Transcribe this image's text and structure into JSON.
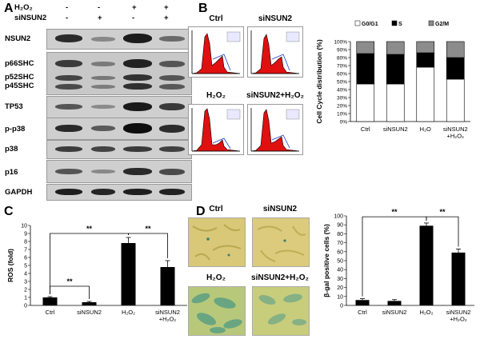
{
  "panels": {
    "a": "A",
    "b": "B",
    "c": "C",
    "d": "D"
  },
  "blot": {
    "treatments": [
      {
        "label": "H₂O₂",
        "values": [
          "-",
          "-",
          "+",
          "+"
        ]
      },
      {
        "label": "siNSUN2",
        "values": [
          "-",
          "+",
          "-",
          "+"
        ]
      }
    ],
    "rows": [
      "NSUN2",
      "p66SHC",
      "p52SHC",
      "p45SHC",
      "TP53",
      "p-p38",
      "p38",
      "p16",
      "GAPDH"
    ]
  },
  "flow": {
    "titles": [
      "Ctrl",
      "siNSUN2",
      "H₂O₂",
      "siNSUN2+H₂O₂"
    ]
  },
  "micro": {
    "titles": [
      "Ctrl",
      "siNSUN2",
      "H₂O₂",
      "siNSUN2+H₂O₂"
    ]
  },
  "chart_data": [
    {
      "type": "bar",
      "stacked": true,
      "categories": [
        "Ctrl",
        "siNSUN2",
        "H₂O",
        "siNSUN2\n+H₂O₂"
      ],
      "series": [
        {
          "name": "G0/G1",
          "values": [
            47,
            47,
            68,
            53
          ],
          "color": "#ffffff"
        },
        {
          "name": "S",
          "values": [
            38,
            37,
            18,
            27
          ],
          "color": "#000000"
        },
        {
          "name": "G2/M",
          "values": [
            15,
            16,
            14,
            20
          ],
          "color": "#8c8c8c"
        }
      ],
      "ylabel": "Cell Cycle distribution (%)",
      "yticks": [
        "0%",
        "10%",
        "20%",
        "30%",
        "40%",
        "50%",
        "60%",
        "70%",
        "80%",
        "90%",
        "100%"
      ],
      "ylim": [
        0,
        100
      ],
      "legend": "top"
    },
    {
      "type": "bar",
      "categories": [
        "Ctrl",
        "siNSUN2",
        "H₂O₂",
        "siNSUN2\n+H₂O₂"
      ],
      "values": [
        1.0,
        0.4,
        7.8,
        4.8
      ],
      "errors": [
        0.1,
        0.1,
        0.7,
        0.8
      ],
      "ylabel": "ROS (fold)",
      "yticks": [
        "0",
        "1",
        "2",
        "3",
        "4",
        "5",
        "6",
        "7",
        "8",
        "9",
        "10"
      ],
      "ylim": [
        0,
        10
      ],
      "significance": [
        {
          "from": 0,
          "to": 1,
          "label": "**"
        },
        {
          "from": 0,
          "to": 2,
          "label": "**"
        },
        {
          "from": 2,
          "to": 3,
          "label": "**"
        }
      ]
    },
    {
      "type": "bar",
      "categories": [
        "Ctrl",
        "siNSUN2",
        "H₂O₂",
        "siNSUN2\n+H₂O₂"
      ],
      "values": [
        6,
        5,
        89,
        59
      ],
      "errors": [
        1.5,
        1.5,
        3,
        4
      ],
      "ylabel": "β-gal positive cells (%)",
      "yticks": [
        "0",
        "10",
        "20",
        "30",
        "40",
        "50",
        "60",
        "70",
        "80",
        "90",
        "100"
      ],
      "ylim": [
        0,
        100
      ],
      "significance": [
        {
          "from": 0,
          "to": 2,
          "label": "**"
        },
        {
          "from": 2,
          "to": 3,
          "label": "**"
        }
      ]
    }
  ]
}
